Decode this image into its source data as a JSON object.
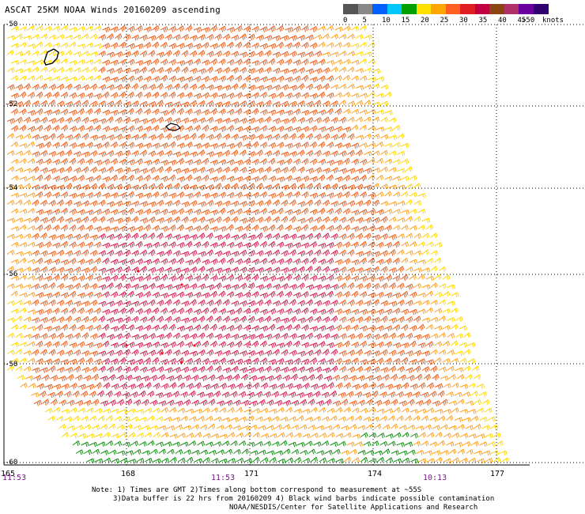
{
  "title": "ASCAT 25KM NOAA Winds 20160209 ascending",
  "legend": {
    "colors": [
      "#555555",
      "#888888",
      "#0060ff",
      "#00c8ff",
      "#00a000",
      "#ffe000",
      "#ffa500",
      "#ff6020",
      "#e02020",
      "#c00040",
      "#8b4513",
      "#b0306a",
      "#6a00a0",
      "#300070"
    ],
    "ticks": [
      "0",
      "5",
      "10",
      "15",
      "20",
      "25",
      "30",
      "35",
      "40",
      "45",
      ">50"
    ],
    "units": "knots"
  },
  "axes": {
    "lat_labels": [
      "-50",
      "-52",
      "-54",
      "-56",
      "-58",
      "-60"
    ],
    "lon_labels": [
      "165",
      "168",
      "171",
      "174",
      "177"
    ],
    "time_labels": [
      "11:53",
      "11:53",
      "10:13"
    ]
  },
  "notes": [
    "Note: 1) Times are GMT 2)Times along bottom correspond to measurement at ~55S",
    "3)Data buffer is 22 hrs from 20160209 4) Black wind barbs indicate possible contamination",
    "NOAA/NESDIS/Center for Satellite Applications and Research"
  ],
  "map": {
    "grid_color": "#000000",
    "land_color": "#000000",
    "barb_colors": {
      "light": "#ffd700",
      "moderate": "#ffa020",
      "fresh": "#e86020",
      "strong": "#d02050",
      "very_strong": "#ff1020",
      "calm_green": "#109010",
      "contaminated": "#000000"
    }
  }
}
